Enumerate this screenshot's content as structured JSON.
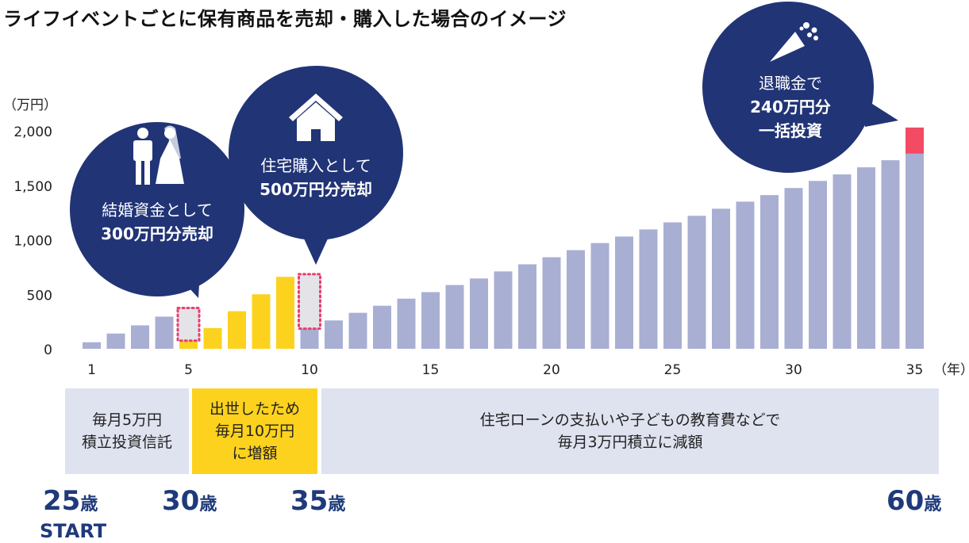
{
  "title": "ライフイベントごとに保有商品を売却・購入した場合のイメージ",
  "colors": {
    "bar_default": "#a9afd3",
    "bar_raised": "#fcd21e",
    "bar_lump_sum": "#f24b63",
    "bubble": "#213476",
    "sold_marker": "#e83f6f",
    "phase_bg": "#dfe2ef",
    "phase_highlight": "#fcd21e",
    "age_text": "#1e3a7a"
  },
  "chart_data": {
    "type": "bar",
    "title": "ライフイベントごとに保有商品を売却・購入した場合のイメージ",
    "ylabel": "（万円）",
    "xlabel": "（年）",
    "ylim": [
      0,
      2000
    ],
    "yticks": [
      "0",
      "500",
      "1,000",
      "1,500",
      "2,000"
    ],
    "ytick_values": [
      0,
      500,
      1000,
      1500,
      2000
    ],
    "xticks": [
      "1",
      "5",
      "10",
      "15",
      "20",
      "25",
      "30",
      "35"
    ],
    "xtick_values": [
      1,
      5,
      10,
      15,
      20,
      25,
      30,
      35
    ],
    "x": [
      1,
      2,
      3,
      4,
      5,
      6,
      7,
      8,
      9,
      10,
      11,
      12,
      13,
      14,
      15,
      16,
      17,
      18,
      19,
      20,
      21,
      22,
      23,
      24,
      25,
      26,
      27,
      28,
      29,
      30,
      31,
      32,
      33,
      34,
      35
    ],
    "values": [
      60,
      140,
      215,
      295,
      75,
      190,
      345,
      500,
      660,
      185,
      260,
      330,
      395,
      460,
      520,
      585,
      645,
      710,
      775,
      840,
      905,
      970,
      1030,
      1095,
      1160,
      1220,
      1285,
      1350,
      1410,
      1475,
      1540,
      1600,
      1665,
      1730,
      1790
    ],
    "bar_groups": [
      "default",
      "default",
      "default",
      "default",
      "raised",
      "raised",
      "raised",
      "raised",
      "raised",
      "default",
      "default",
      "default",
      "default",
      "default",
      "default",
      "default",
      "default",
      "default",
      "default",
      "default",
      "default",
      "default",
      "default",
      "default",
      "default",
      "default",
      "default",
      "default",
      "default",
      "default",
      "default",
      "default",
      "default",
      "default",
      "default"
    ],
    "sold_amounts": [
      {
        "x": 5,
        "value": 300
      },
      {
        "x": 10,
        "value": 500
      }
    ],
    "lump_sum": {
      "x": 35,
      "value": 240
    }
  },
  "bubbles": {
    "wedding": {
      "icon": "wedding-couple-icon",
      "line1": "結婚資金として",
      "line2": "300万円分売却"
    },
    "house": {
      "icon": "house-icon",
      "line1": "住宅購入として",
      "line2": "500万円分売却"
    },
    "retirement": {
      "icon": "party-popper-icon",
      "line1": "退職金で",
      "line2": "240万円分",
      "line3": "一括投資"
    }
  },
  "phases": [
    {
      "line1": "毎月5万円",
      "line2": "積立投資信託"
    },
    {
      "line1": "出世したため",
      "line2": "毎月10万円",
      "line3": "に増額"
    },
    {
      "line1": "住宅ローンの支払いや子どもの教育費などで",
      "line2": "毎月3万円積立に減額"
    }
  ],
  "ages": [
    {
      "num": "25",
      "unit": "歳"
    },
    {
      "num": "30",
      "unit": "歳"
    },
    {
      "num": "35",
      "unit": "歳"
    },
    {
      "num": "60",
      "unit": "歳"
    }
  ],
  "start_label": "START"
}
